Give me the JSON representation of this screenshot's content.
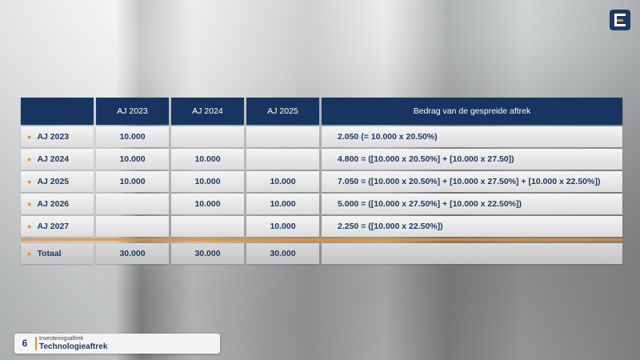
{
  "slide": {
    "page_number": "6",
    "section": "Investeringsaftrek",
    "title": "Technologieaftrek"
  },
  "table": {
    "headers": [
      "",
      "AJ 2023",
      "AJ 2024",
      "AJ 2025",
      "Bedrag van de gespreide aftrek"
    ],
    "rows": [
      [
        "AJ 2023",
        "10.000",
        "",
        "",
        "2.050 (= 10.000 x 20.50%)"
      ],
      [
        "AJ 2024",
        "10.000",
        "10.000",
        "",
        "4.800 = ([10.000 x 20.50%] + [10.000 x 27.50])"
      ],
      [
        "AJ 2025",
        "10.000",
        "10.000",
        "10.000",
        "7.050 = ([10.000 x 20.50%] + [10.000 x 27.50%] + [10.000 x 22.50%])"
      ],
      [
        "AJ 2026",
        "",
        "10.000",
        "10.000",
        "5.000 = ([10.000 x 27.50%] + [10.000 x 22.50%])"
      ],
      [
        "AJ 2027",
        "",
        "",
        "10.000",
        "2.250 = ([10.000 x 22.50%])"
      ]
    ],
    "total": [
      "Totaal",
      "30.000",
      "30.000",
      "30.000",
      ""
    ]
  },
  "colors": {
    "header_bg": "#17365f",
    "accent": "#e8902a",
    "text_navy": "#1f3a63"
  },
  "icons": {
    "logo": "brand-logo-icon",
    "bullet": "bullet-icon"
  }
}
